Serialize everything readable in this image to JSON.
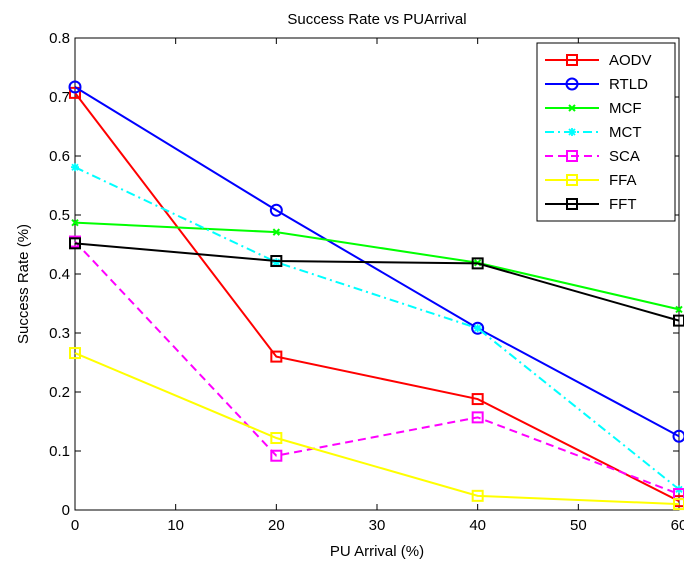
{
  "chart_data": {
    "type": "line",
    "title": "Success Rate vs PUArrival",
    "xlabel": "PU Arrival (%)",
    "ylabel": "Success Rate (%)",
    "xlim": [
      0,
      60
    ],
    "ylim": [
      0,
      0.8
    ],
    "xticks": [
      "0",
      "10",
      "20",
      "30",
      "40",
      "50",
      "60"
    ],
    "yticks": [
      "0",
      "0.1",
      "0.2",
      "0.3",
      "0.4",
      "0.5",
      "0.6",
      "0.7",
      "0.8"
    ],
    "x": [
      0,
      20,
      40,
      60
    ],
    "grid": false,
    "legend_position": "top-right",
    "series": [
      {
        "name": "AODV",
        "color": "#ff0000",
        "dash": "solid",
        "marker": "square",
        "values": [
          0.707,
          0.26,
          0.188,
          0.015
        ]
      },
      {
        "name": "RTLD",
        "color": "#0000ff",
        "dash": "solid",
        "marker": "circle",
        "values": [
          0.717,
          0.508,
          0.308,
          0.125
        ]
      },
      {
        "name": "MCF",
        "color": "#00ff00",
        "dash": "solid",
        "marker": "x",
        "values": [
          0.487,
          0.471,
          0.419,
          0.34
        ]
      },
      {
        "name": "MCT",
        "color": "#00ffff",
        "dash": "dashdot",
        "marker": "star",
        "values": [
          0.581,
          0.42,
          0.308,
          0.035
        ]
      },
      {
        "name": "SCA",
        "color": "#ff00ff",
        "dash": "dashed",
        "marker": "square",
        "values": [
          0.455,
          0.092,
          0.157,
          0.027
        ]
      },
      {
        "name": "FFA",
        "color": "#ffff00",
        "dash": "solid",
        "marker": "square",
        "values": [
          0.266,
          0.122,
          0.024,
          0.01
        ]
      },
      {
        "name": "FFT",
        "color": "#000000",
        "dash": "solid",
        "marker": "square",
        "values": [
          0.452,
          0.422,
          0.418,
          0.321
        ]
      }
    ]
  }
}
